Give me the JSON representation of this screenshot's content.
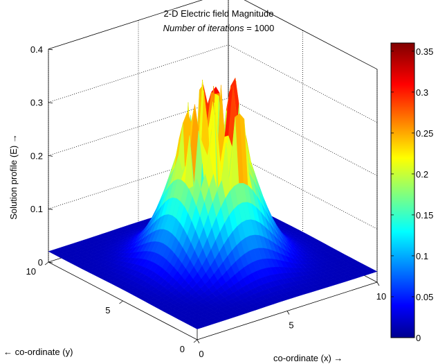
{
  "chart_data": {
    "type": "surface3d",
    "title": "2-D Electric field Magnitude",
    "subtitle": {
      "italic_part": "Number of iterations",
      "rest": " = 1000"
    },
    "xlabel": "co-ordinate (x) →",
    "ylabel": "← co-ordinate (y)",
    "zlabel": "Solution profile (E) →",
    "xlim": [
      0,
      10
    ],
    "ylim": [
      0,
      10
    ],
    "zlim": [
      0,
      0.4
    ],
    "x_ticks": [
      "0",
      "5",
      "10"
    ],
    "y_ticks": [
      "0",
      "5",
      "10"
    ],
    "z_ticks": [
      "0",
      "0.1",
      "0.2",
      "0.3",
      "0.4"
    ],
    "colormap": "jet",
    "colorbar": {
      "range": [
        0,
        0.36
      ],
      "ticks": [
        "0",
        "0.05",
        "0.1",
        "0.15",
        "0.2",
        "0.25",
        "0.3",
        "0.35"
      ]
    },
    "surface_summary": {
      "base_level": 0.02,
      "peak_center": [
        5,
        5
      ],
      "peak_max": 0.36,
      "central_region_irregular": true
    },
    "grid": true
  }
}
